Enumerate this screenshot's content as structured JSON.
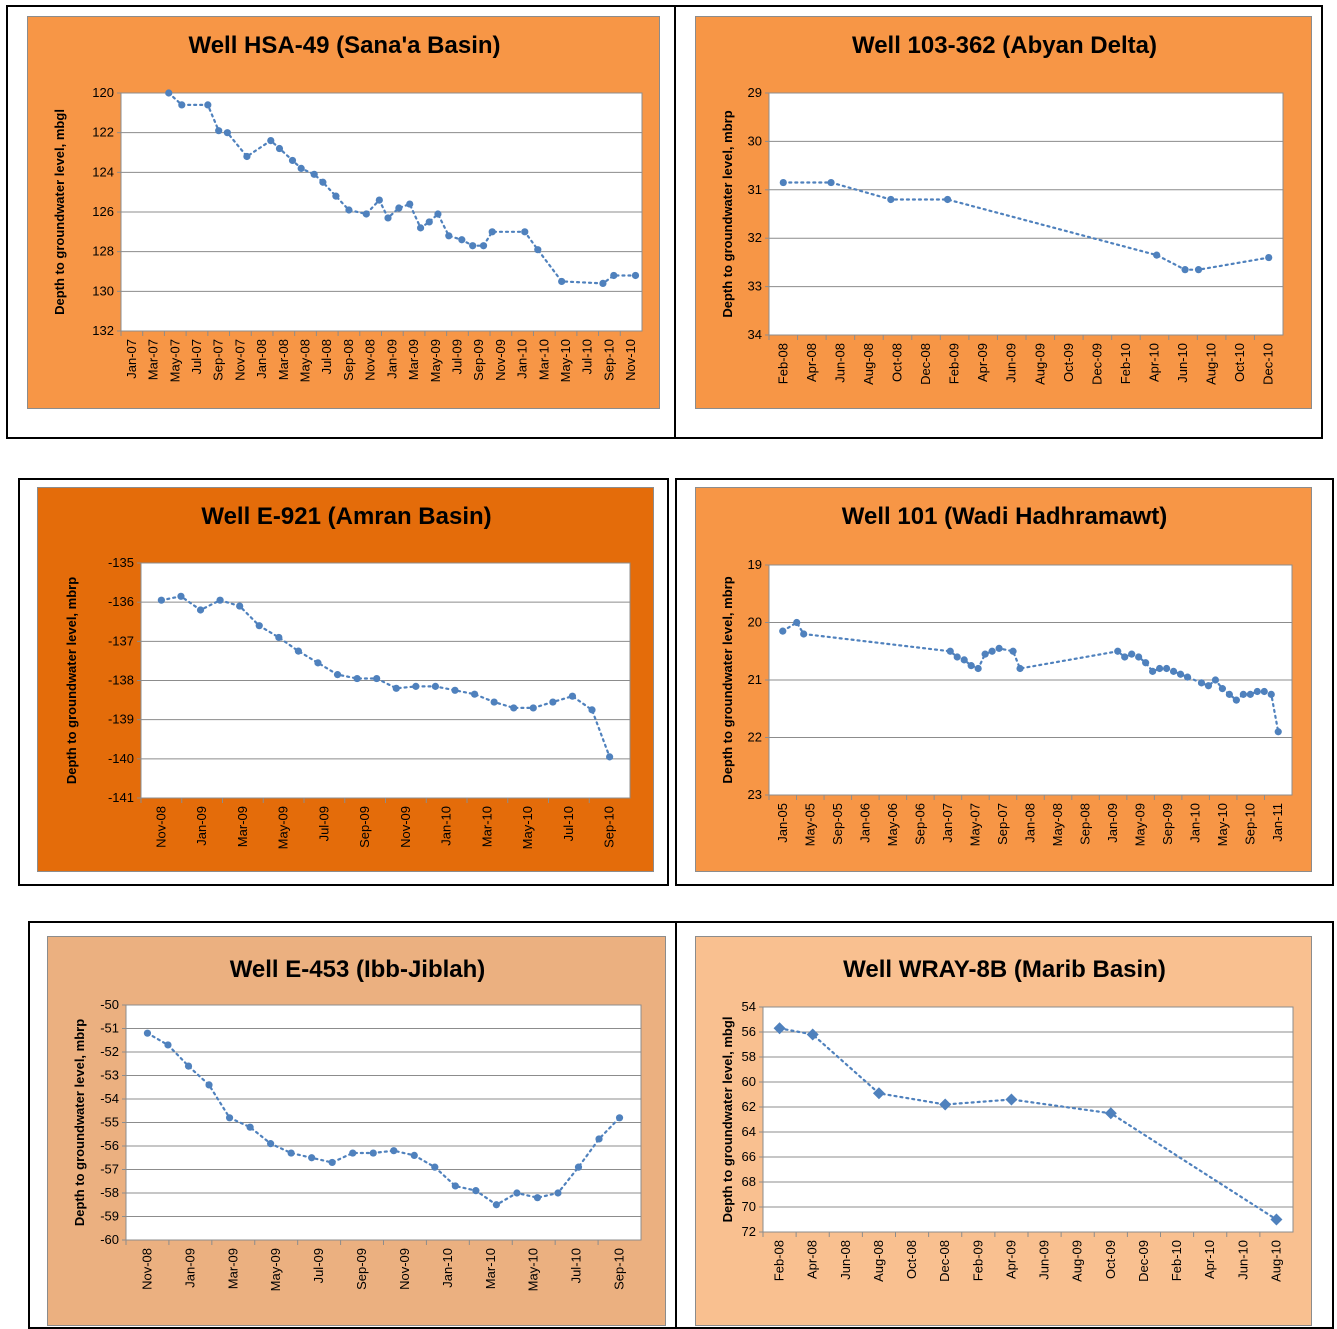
{
  "chart_data": [
    {
      "type": "line",
      "title": "Well HSA-49 (Sana'a Basin)",
      "ylabel": "Depth to groundwater level, mbgl",
      "xlabel": "",
      "x_ticks": [
        "Jan-07",
        "Mar-07",
        "May-07",
        "Jul-07",
        "Sep-07",
        "Nov-07",
        "Jan-08",
        "Mar-08",
        "May-08",
        "Jul-08",
        "Sep-08",
        "Nov-08",
        "Jan-09",
        "Mar-09",
        "May-09",
        "Jul-09",
        "Sep-09",
        "Nov-09",
        "Jan-10",
        "Mar-10",
        "May-10",
        "Jul-10",
        "Sep-10",
        "Nov-10"
      ],
      "y_ticks": [
        "120",
        "122",
        "124",
        "126",
        "128",
        "130",
        "132"
      ],
      "ylim": [
        120,
        132
      ],
      "y_inverted": true,
      "grid": true,
      "marker": "circle",
      "series": [
        {
          "x": [
            1.7,
            2.3,
            3.5,
            4.0,
            4.4,
            5.3,
            6.4,
            6.8,
            7.4,
            7.8,
            8.4,
            8.8,
            9.4,
            10.0,
            10.8,
            11.4,
            11.8,
            12.3,
            12.8,
            13.3,
            13.7,
            14.1,
            14.6,
            15.2,
            15.7,
            16.2,
            16.6,
            18.1,
            18.7,
            19.8,
            21.7,
            22.2,
            23.2
          ],
          "y": [
            120.0,
            120.6,
            120.6,
            121.9,
            122.0,
            123.2,
            122.4,
            122.8,
            123.4,
            123.8,
            124.1,
            124.5,
            125.2,
            125.9,
            126.1,
            125.4,
            126.3,
            125.8,
            125.6,
            126.8,
            126.5,
            126.1,
            127.2,
            127.4,
            127.7,
            127.7,
            127.0,
            127.0,
            127.9,
            129.5,
            129.6,
            129.2,
            129.2
          ]
        }
      ]
    },
    {
      "type": "line",
      "title": "Well 103-362 (Abyan Delta)",
      "ylabel": "Depth to groundwater level, mbrp",
      "xlabel": "",
      "x_ticks": [
        "Feb-08",
        "Apr-08",
        "Jun-08",
        "Aug-08",
        "Oct-08",
        "Dec-08",
        "Feb-09",
        "Apr-09",
        "Jun-09",
        "Aug-09",
        "Oct-09",
        "Dec-09",
        "Feb-10",
        "Apr-10",
        "Jun-10",
        "Aug-10",
        "Oct-10",
        "Dec-10"
      ],
      "y_ticks": [
        "29",
        "30",
        "31",
        "32",
        "33",
        "34"
      ],
      "ylim": [
        29,
        34
      ],
      "y_inverted": true,
      "grid": true,
      "marker": "circle",
      "series": [
        {
          "x": [
            0.0,
            3.2,
            7.2,
            11.0,
            25.0,
            26.9,
            27.8,
            32.5
          ],
          "y": [
            30.85,
            30.85,
            31.2,
            31.2,
            32.35,
            32.65,
            32.65,
            32.4
          ]
        }
      ]
    },
    {
      "type": "line",
      "title": "Well E-921 (Amran Basin)",
      "ylabel": "Depth to groundwater level, mbrp",
      "xlabel": "",
      "x_ticks": [
        "Nov-08",
        "Jan-09",
        "Mar-09",
        "May-09",
        "Jul-09",
        "Sep-09",
        "Nov-09",
        "Jan-10",
        "Mar-10",
        "May-10",
        "Jul-10",
        "Sep-10"
      ],
      "y_ticks": [
        "-135",
        "-136",
        "-137",
        "-138",
        "-139",
        "-140",
        "-141"
      ],
      "ylim": [
        -141,
        -135
      ],
      "grid": true,
      "marker": "circle",
      "series": [
        {
          "x": [
            0.0,
            1.0,
            2.0,
            3.0,
            4.0,
            5.0,
            6.0,
            7.0,
            8.0,
            9.0,
            10.0,
            11.0,
            12.0,
            13.0,
            14.0,
            15.0,
            16.0,
            17.0,
            18.0,
            19.0,
            20.0,
            21.0,
            22.0,
            22.9
          ],
          "y": [
            -135.95,
            -135.85,
            -136.2,
            -135.95,
            -136.1,
            -136.6,
            -136.9,
            -137.25,
            -137.55,
            -137.85,
            -137.95,
            -137.95,
            -138.2,
            -138.15,
            -138.15,
            -138.25,
            -138.35,
            -138.55,
            -138.7,
            -138.7,
            -138.55,
            -138.4,
            -138.75,
            -139.95
          ]
        }
      ]
    },
    {
      "type": "line",
      "title": "Well 101 (Wadi Hadhramawt)",
      "ylabel": "Depth to groundwater level, mbrp",
      "xlabel": "",
      "x_ticks": [
        "Jan-05",
        "May-05",
        "Sep-05",
        "Jan-06",
        "May-06",
        "Sep-06",
        "Jan-07",
        "May-07",
        "Sep-07",
        "Jan-08",
        "May-08",
        "Sep-08",
        "Jan-09",
        "May-09",
        "Sep-09",
        "Jan-10",
        "May-10",
        "Sep-10",
        "Jan-11"
      ],
      "y_ticks": [
        "19",
        "20",
        "21",
        "22",
        "23"
      ],
      "ylim": [
        19,
        23
      ],
      "y_inverted": true,
      "grid": true,
      "marker": "circle",
      "series": [
        {
          "x": [
            0.0,
            2.0,
            3.0,
            24.0,
            25.0,
            26.0,
            27.0,
            28.0,
            29.0,
            30.0,
            31.0,
            33.0,
            34.0,
            48.0,
            49.0,
            50.0,
            51.0,
            52.0,
            53.0,
            54.0,
            55.0,
            56.0,
            57.0,
            58.0,
            60.0,
            61.0,
            62.0,
            63.0,
            64.0,
            65.0,
            66.0,
            67.0,
            68.0,
            69.0,
            70.0,
            71.0
          ],
          "y": [
            20.15,
            20.0,
            20.2,
            20.5,
            20.6,
            20.65,
            20.75,
            20.8,
            20.55,
            20.5,
            20.45,
            20.5,
            20.8,
            20.5,
            20.6,
            20.55,
            20.6,
            20.7,
            20.85,
            20.8,
            20.8,
            20.85,
            20.9,
            20.95,
            21.05,
            21.1,
            21.0,
            21.15,
            21.25,
            21.35,
            21.25,
            21.25,
            21.2,
            21.2,
            21.25,
            21.9
          ]
        }
      ]
    },
    {
      "type": "line",
      "title": "Well E-453 (Ibb-Jiblah)",
      "ylabel": "Depth to groundwater level, mbrp",
      "xlabel": "",
      "x_ticks": [
        "Nov-08",
        "Jan-09",
        "Mar-09",
        "May-09",
        "Jul-09",
        "Sep-09",
        "Nov-09",
        "Jan-10",
        "Mar-10",
        "May-10",
        "Jul-10",
        "Sep-10"
      ],
      "y_ticks": [
        "-50",
        "-51",
        "-52",
        "-53",
        "-54",
        "-55",
        "-56",
        "-57",
        "-58",
        "-59",
        "-60"
      ],
      "ylim": [
        -60,
        -50
      ],
      "grid": true,
      "marker": "circle",
      "series": [
        {
          "x": [
            0.0,
            1.0,
            2.0,
            3.0,
            4.0,
            5.0,
            6.0,
            7.0,
            8.0,
            9.0,
            10.0,
            11.0,
            12.0,
            13.0,
            14.0,
            15.0,
            16.0,
            17.0,
            18.0,
            19.0,
            20.0,
            21.0,
            22.0,
            23.0
          ],
          "y": [
            -51.2,
            -51.7,
            -52.6,
            -53.4,
            -54.8,
            -55.2,
            -55.9,
            -56.3,
            -56.5,
            -56.7,
            -56.3,
            -56.3,
            -56.2,
            -56.4,
            -56.9,
            -57.7,
            -57.9,
            -58.5,
            -58.0,
            -58.2,
            -58.0,
            -56.9,
            -55.7,
            -54.8
          ]
        }
      ]
    },
    {
      "type": "line",
      "title": "Well WRAY-8B (Marib Basin)",
      "ylabel": "Depth to groundwater level, mbgl",
      "xlabel": "",
      "x_ticks": [
        "Feb-08",
        "Apr-08",
        "Jun-08",
        "Aug-08",
        "Oct-08",
        "Dec-08",
        "Feb-09",
        "Apr-09",
        "Jun-09",
        "Aug-09",
        "Oct-09",
        "Dec-09",
        "Feb-10",
        "Apr-10",
        "Jun-10",
        "Aug-10"
      ],
      "y_ticks": [
        "54",
        "56",
        "58",
        "60",
        "62",
        "64",
        "66",
        "68",
        "70",
        "72"
      ],
      "ylim": [
        54,
        72
      ],
      "y_inverted": true,
      "grid": true,
      "marker": "diamond",
      "series": [
        {
          "x": [
            0.0,
            2.0,
            6.0,
            10.0,
            14.0,
            20.0,
            30.0
          ],
          "y": [
            55.7,
            56.2,
            60.9,
            61.8,
            61.4,
            62.5,
            71.0
          ]
        }
      ]
    }
  ]
}
